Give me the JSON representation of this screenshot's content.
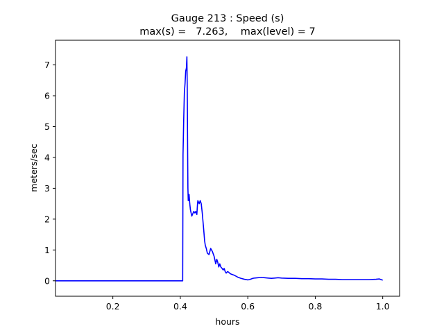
{
  "chart_data": {
    "type": "line",
    "title": "Gauge 213 : Speed (s)",
    "subtitle": "max(s) =   7.263,    max(level) = 7",
    "xlabel": "hours",
    "ylabel": "meters/sec",
    "xlim": [
      0.03,
      1.05
    ],
    "ylim": [
      -0.5,
      7.8
    ],
    "xticks": [
      0.2,
      0.4,
      0.6,
      0.8,
      1.0
    ],
    "xtick_labels": [
      "0.2",
      "0.4",
      "0.6",
      "0.8",
      "1.0"
    ],
    "yticks": [
      0,
      1,
      2,
      3,
      4,
      5,
      6,
      7
    ],
    "ytick_labels": [
      "0",
      "1",
      "2",
      "3",
      "4",
      "5",
      "6",
      "7"
    ],
    "grid": false,
    "series": [
      {
        "color": "#0000ff",
        "x": [
          0.03,
          0.1,
          0.2,
          0.3,
          0.405,
          0.407,
          0.408,
          0.41,
          0.412,
          0.414,
          0.416,
          0.418,
          0.4195,
          0.4205,
          0.422,
          0.4225,
          0.4235,
          0.424,
          0.425,
          0.426,
          0.428,
          0.43,
          0.434,
          0.436,
          0.44,
          0.443,
          0.446,
          0.449,
          0.451,
          0.452,
          0.454,
          0.456,
          0.459,
          0.462,
          0.465,
          0.469,
          0.472,
          0.474,
          0.477,
          0.48,
          0.485,
          0.49,
          0.495,
          0.5,
          0.505,
          0.508,
          0.511,
          0.514,
          0.517,
          0.52,
          0.524,
          0.527,
          0.53,
          0.533,
          0.536,
          0.54,
          0.543,
          0.546,
          0.55,
          0.555,
          0.56,
          0.565,
          0.57,
          0.58,
          0.59,
          0.6,
          0.605,
          0.61,
          0.615,
          0.62,
          0.63,
          0.64,
          0.65,
          0.66,
          0.67,
          0.68,
          0.69,
          0.7,
          0.72,
          0.74,
          0.76,
          0.78,
          0.8,
          0.82,
          0.84,
          0.86,
          0.88,
          0.9,
          0.92,
          0.94,
          0.96,
          0.98,
          0.99,
          0.995,
          1.0
        ],
        "y": [
          0,
          0,
          0,
          0,
          0,
          0,
          4.1,
          5.2,
          6.1,
          6.4,
          6.8,
          6.9,
          7.263,
          6.3,
          3.7,
          3.0,
          2.6,
          2.8,
          2.6,
          2.8,
          2.5,
          2.3,
          2.1,
          2.15,
          2.25,
          2.2,
          2.25,
          2.15,
          2.5,
          2.6,
          2.55,
          2.5,
          2.6,
          2.5,
          2.2,
          1.7,
          1.3,
          1.15,
          1.05,
          0.9,
          0.85,
          1.05,
          0.95,
          0.8,
          0.55,
          0.7,
          0.6,
          0.45,
          0.55,
          0.45,
          0.4,
          0.35,
          0.4,
          0.3,
          0.25,
          0.3,
          0.28,
          0.25,
          0.22,
          0.2,
          0.18,
          0.15,
          0.12,
          0.08,
          0.05,
          0.03,
          0.04,
          0.06,
          0.08,
          0.09,
          0.1,
          0.11,
          0.1,
          0.09,
          0.08,
          0.09,
          0.1,
          0.09,
          0.08,
          0.08,
          0.07,
          0.07,
          0.06,
          0.06,
          0.05,
          0.05,
          0.04,
          0.04,
          0.04,
          0.04,
          0.04,
          0.05,
          0.06,
          0.04,
          0.02
        ]
      }
    ]
  }
}
